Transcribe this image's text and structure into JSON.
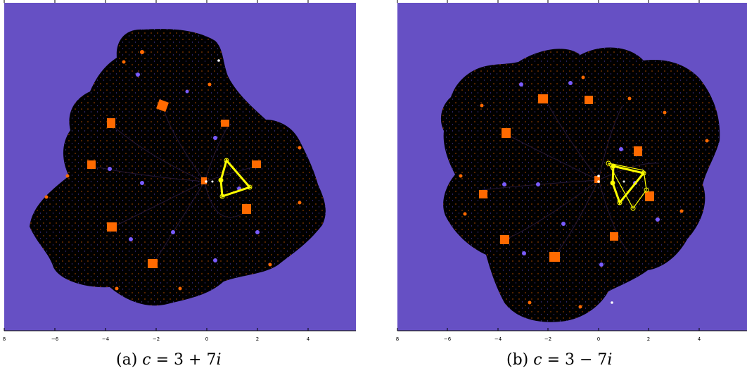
{
  "colors": {
    "background": "#6650c4",
    "filled_set": "#000000",
    "orange_basins": "#ff6a00",
    "violet_specks": "#7a5cff",
    "outline": "#ffff00",
    "marker": "#ffffff"
  },
  "panels": [
    {
      "id": "a",
      "caption_prefix": "(a)",
      "caption_var": "c",
      "caption_rest": " = 3 + 7",
      "caption_imag": "i",
      "x_ticks": [
        "8",
        "−6",
        "−4",
        "−2",
        "0",
        "2",
        "4"
      ]
    },
    {
      "id": "b",
      "caption_prefix": "(b)",
      "caption_var": "c",
      "caption_rest": " = 3 − 7",
      "caption_imag": "i",
      "x_ticks": [
        "8",
        "−6",
        "−4",
        "−2",
        "0",
        "2",
        "4"
      ]
    }
  ]
}
